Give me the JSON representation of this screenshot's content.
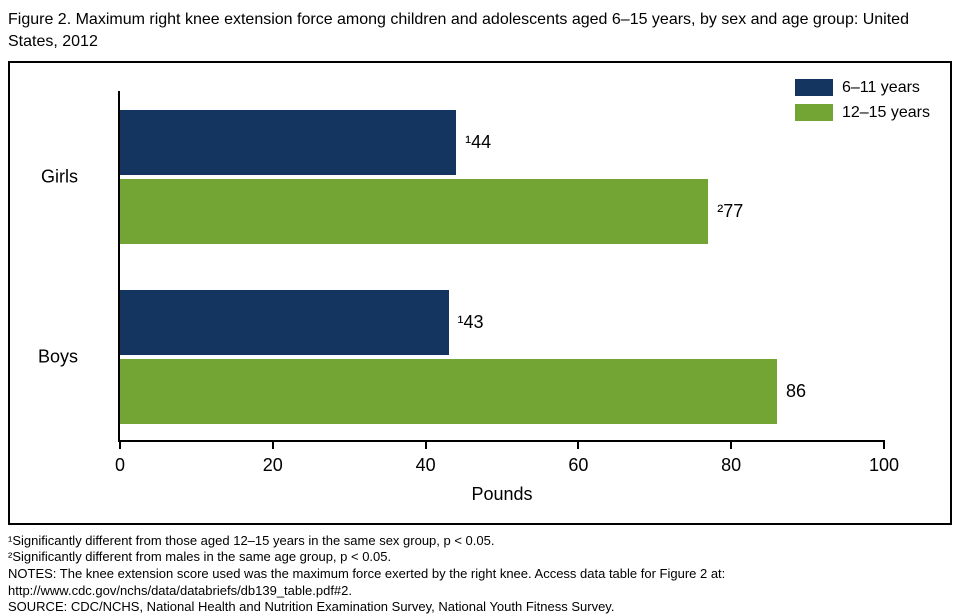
{
  "title": "Figure 2. Maximum right knee extension force among children and adolescents aged 6–15 years, by sex and age group: United States, 2012",
  "chart_data": {
    "type": "bar",
    "orientation": "horizontal",
    "title": "Figure 2. Maximum right knee extension force among children and adolescents aged 6–15 years, by sex and age group: United States, 2012",
    "categories": [
      "Girls",
      "Boys"
    ],
    "series": [
      {
        "name": "6–11 years",
        "color": "#14355f",
        "values": [
          44,
          43
        ],
        "data_labels": [
          "¹44",
          "¹43"
        ]
      },
      {
        "name": "12–15 years",
        "color": "#73a534",
        "values": [
          77,
          86
        ],
        "data_labels": [
          "²77",
          "86"
        ]
      }
    ],
    "xlabel": "Pounds",
    "ylabel": "",
    "xlim": [
      0,
      100
    ],
    "ticks": [
      0,
      20,
      40,
      60,
      80,
      100
    ],
    "grid": false,
    "legend_position": "top-right"
  },
  "footnotes": [
    "¹Significantly different from those aged 12–15 years in the same sex group, p < 0.05.",
    "²Significantly different from males in the same age group, p < 0.05.",
    "NOTES: The knee extension score used was the maximum force exerted by the right knee. Access data table for Figure 2 at:",
    "http://www.cdc.gov/nchs/data/databriefs/db139_table.pdf#2.",
    "SOURCE: CDC/NCHS, National Health and Nutrition Examination Survey, National Youth Fitness Survey."
  ]
}
